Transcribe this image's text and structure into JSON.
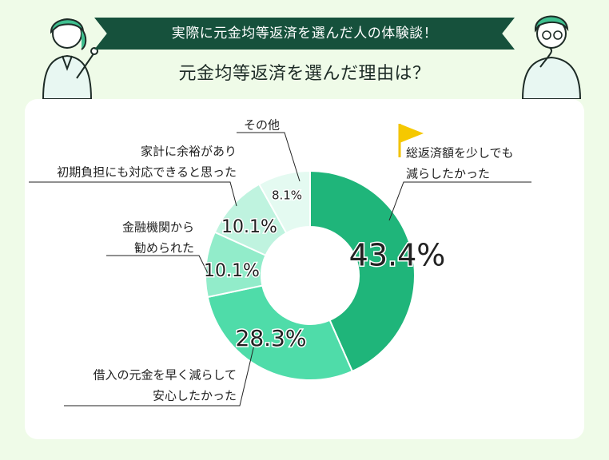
{
  "banner": "実際に元金均等返済を選んだ人の体験談！",
  "subtitle": "元金均等返済を選んだ理由は？",
  "chart_data": {
    "type": "pie",
    "donut": true,
    "unit": "%",
    "slices": [
      {
        "label_lines": [
          "総返済額を少しでも",
          "減らしたかった"
        ],
        "value": 43.4,
        "display": "43.4%",
        "color": "#1fb57a",
        "flag": true
      },
      {
        "label_lines": [
          "借入の元金を早く減らして",
          "安心したかった"
        ],
        "value": 28.3,
        "display": "28.3%",
        "color": "#4fdca9"
      },
      {
        "label_lines": [
          "金融機関から",
          "勧められた"
        ],
        "value": 10.1,
        "display": "10.1%",
        "color": "#92ecca"
      },
      {
        "label_lines": [
          "家計に余裕があり",
          "初期負担にも対応できると思った"
        ],
        "value": 10.1,
        "display": "10.1%",
        "color": "#bff3df"
      },
      {
        "label_lines": [
          "その他"
        ],
        "value": 8.1,
        "display": "8.1%",
        "color": "#e4faf1"
      }
    ]
  }
}
